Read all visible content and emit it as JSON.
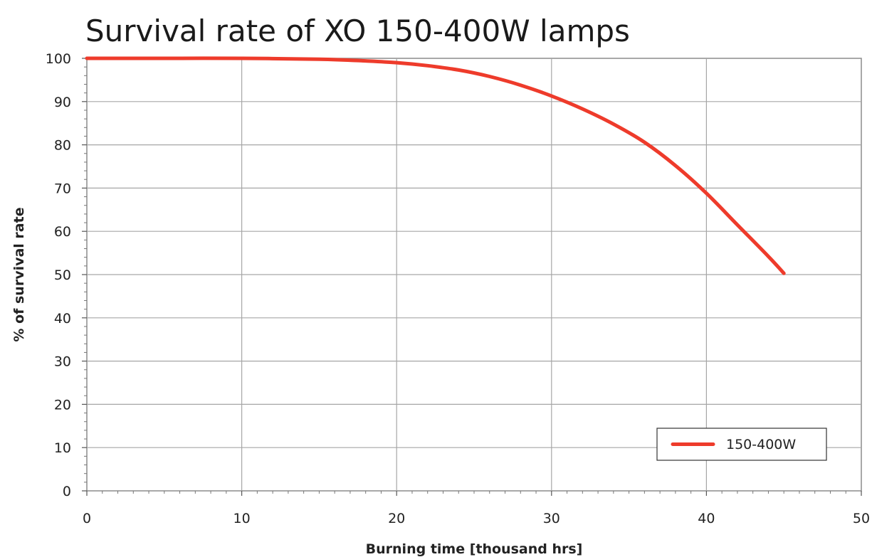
{
  "chart_data": {
    "type": "line",
    "title": "Survival rate of XO 150-400W lamps",
    "xlabel": "Burning time [thousand hrs]",
    "ylabel": "% of survival rate",
    "xlim": [
      0,
      50
    ],
    "ylim": [
      0,
      100
    ],
    "xticks": [
      "0",
      "10",
      "20",
      "30",
      "40",
      "50"
    ],
    "yticks": [
      "0",
      "10",
      "20",
      "30",
      "40",
      "50",
      "60",
      "70",
      "80",
      "90",
      "100"
    ],
    "grid": true,
    "legend_position": "bottom-right",
    "series": [
      {
        "name": "150-400W",
        "color": "#ee3b2b",
        "x": [
          0,
          5,
          10,
          15,
          18,
          20,
          22,
          24,
          26,
          28,
          30,
          32,
          34,
          36,
          38,
          40,
          42,
          44,
          45
        ],
        "y": [
          100,
          100,
          100,
          99.8,
          99.4,
          99,
          98.3,
          97.3,
          95.8,
          93.8,
          91.3,
          88.3,
          84.8,
          80.6,
          75.2,
          68.8,
          61.5,
          54.2,
          50.3
        ]
      }
    ]
  }
}
